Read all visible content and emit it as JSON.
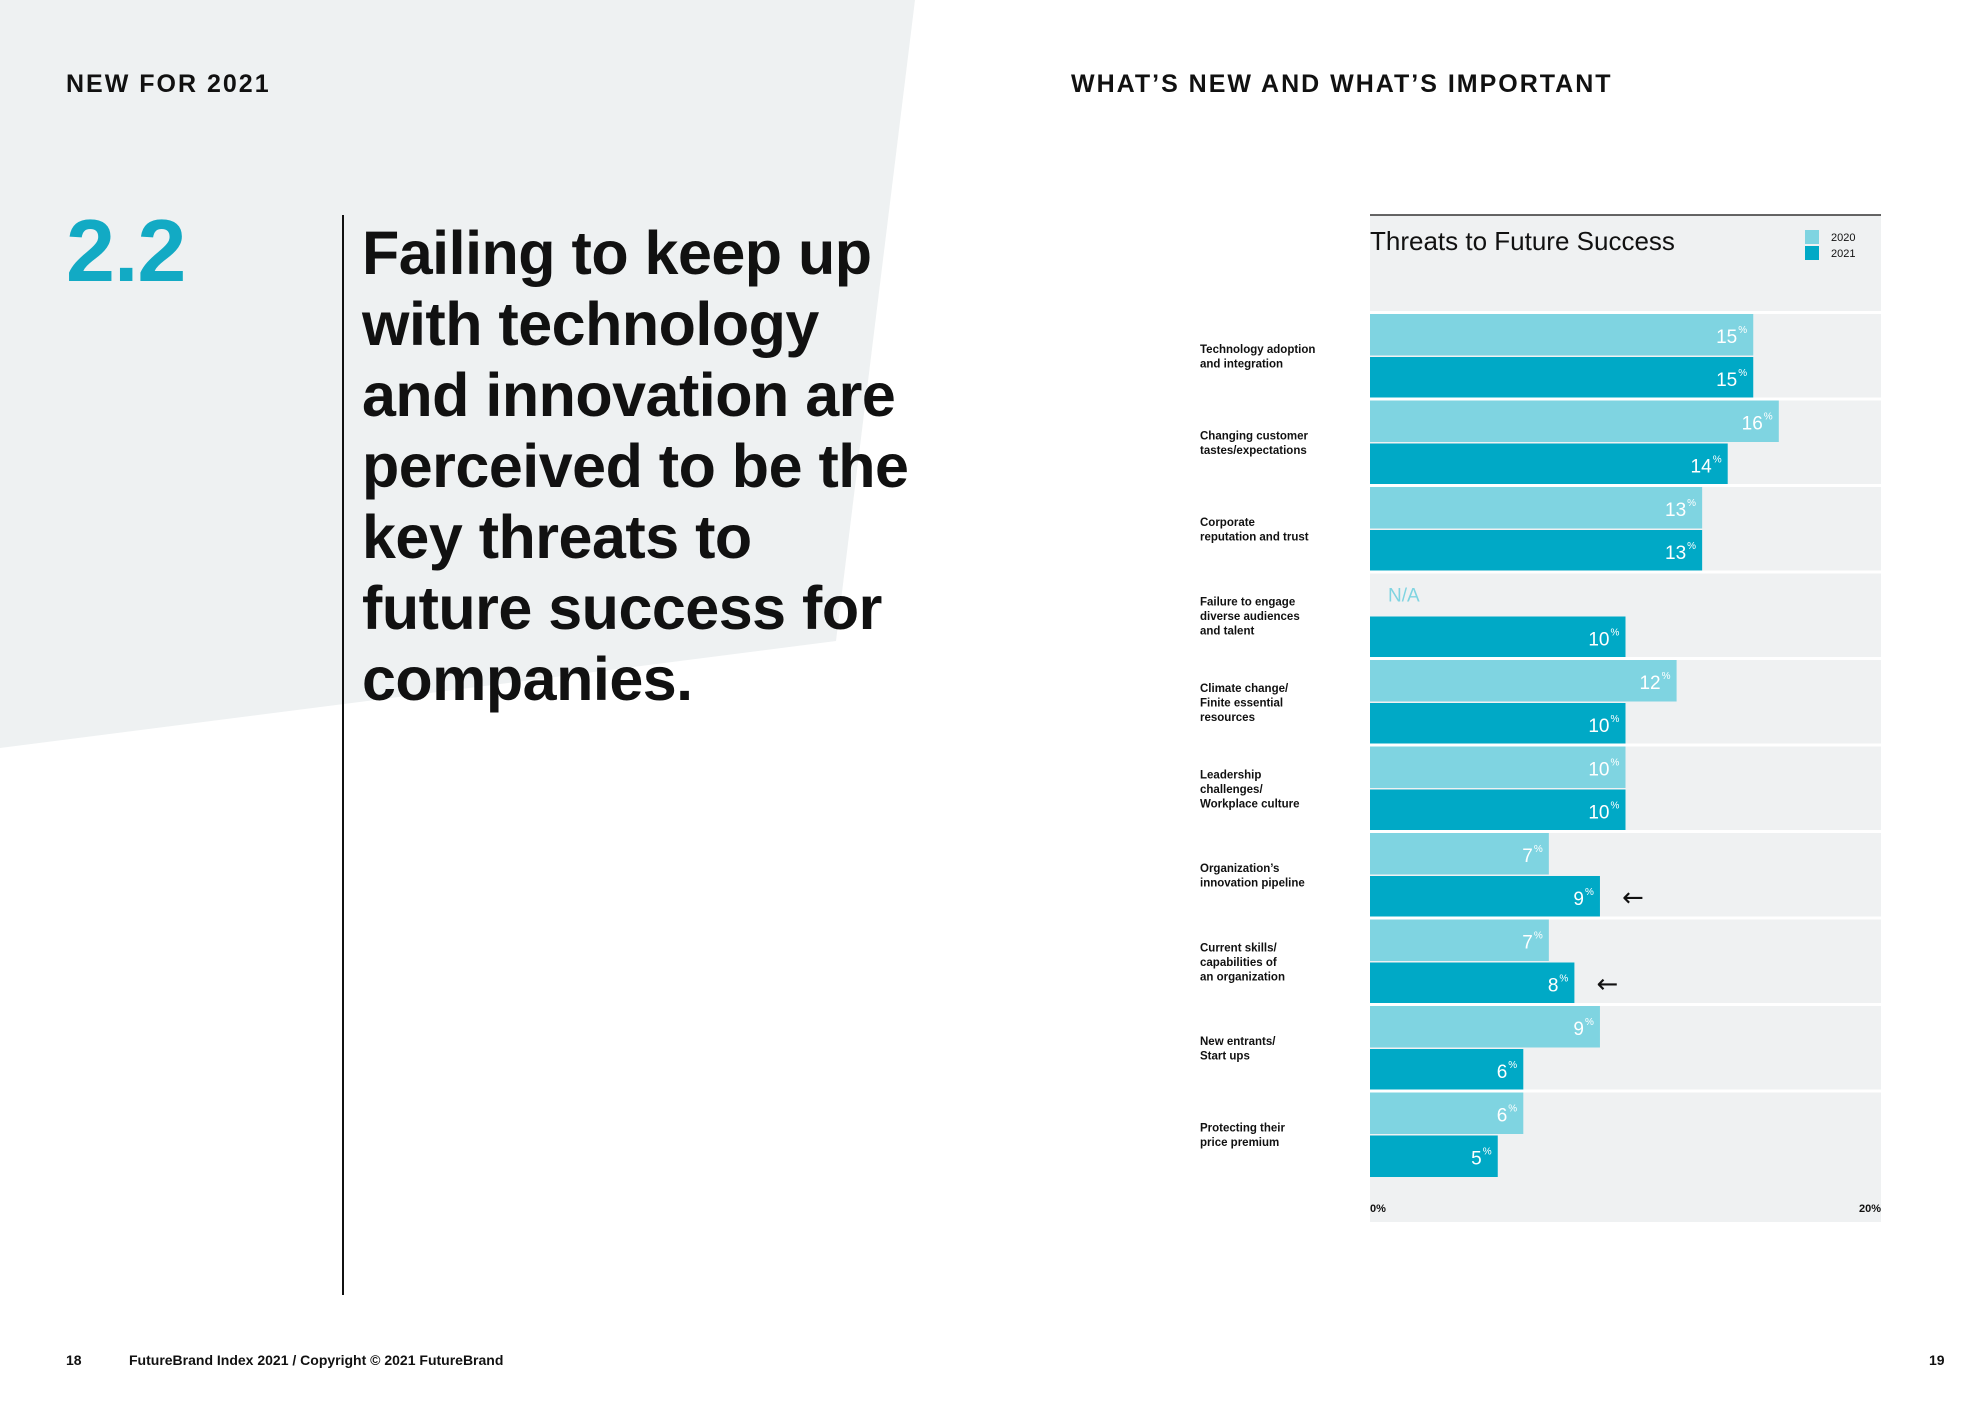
{
  "header": {
    "left_title": "NEW FOR 2021",
    "right_title": "WHAT’S NEW AND WHAT’S IMPORTANT"
  },
  "section": {
    "number": "2.2",
    "headline": "Failing to keep up with technology and innovation are perceived to be the key threats to future success for companies."
  },
  "footer": {
    "left_page": "18",
    "copyright": "FutureBrand Index 2021 / Copyright © 2021 FutureBrand",
    "right_page": "19"
  },
  "colors": {
    "accent": "#12aac4",
    "bar_2020": "#7fd4e1",
    "bar_2021": "#00a9c6",
    "panel": "#eff1f2",
    "bg_shape": "#eef1f2"
  },
  "chart_data": {
    "type": "bar",
    "orientation": "horizontal",
    "title": "Threats to Future Success",
    "categories": [
      [
        "Technology adoption",
        "and integration"
      ],
      [
        "Changing customer",
        "tastes/expectations"
      ],
      [
        "Corporate",
        "reputation and trust"
      ],
      [
        "Failure to engage",
        "diverse audiences",
        "and talent"
      ],
      [
        "Climate change/",
        "Finite essential",
        "resources"
      ],
      [
        "Leadership",
        "challenges/",
        "Workplace culture"
      ],
      [
        "Organization’s",
        "innovation pipeline"
      ],
      [
        "Current skills/",
        "capabilities of",
        "an organization"
      ],
      [
        "New entrants/",
        "Start ups"
      ],
      [
        "Protecting their",
        "price premium"
      ]
    ],
    "series": [
      {
        "name": "2020",
        "values": [
          15,
          16,
          13,
          null,
          12,
          10,
          7,
          7,
          9,
          6
        ]
      },
      {
        "name": "2021",
        "values": [
          15,
          14,
          13,
          10,
          10,
          10,
          9,
          8,
          6,
          5
        ]
      }
    ],
    "missing_label": "N/A",
    "unit": "%",
    "xlim": [
      0,
      20
    ],
    "x_tick_labels": [
      "0%",
      "20%"
    ],
    "legend_position": "top-right",
    "annotations": [
      {
        "category_index": 6,
        "series": "2021",
        "symbol": "←"
      },
      {
        "category_index": 7,
        "series": "2021",
        "symbol": "←"
      }
    ]
  }
}
